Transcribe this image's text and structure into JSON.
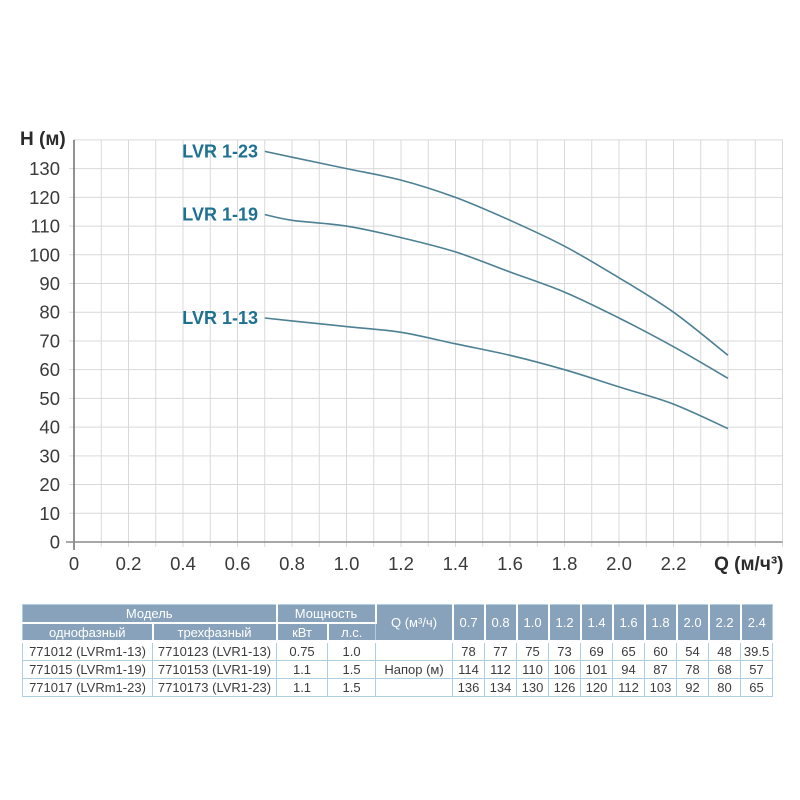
{
  "chart_data": {
    "type": "line",
    "title": "",
    "xlabel": "Q (м/ч³)",
    "ylabel": "H (м)",
    "xlim": [
      0,
      2.6
    ],
    "ylim": [
      0,
      140
    ],
    "grid": {
      "on": true,
      "x_step": 0.1,
      "y_step": 10
    },
    "legend_position": "inline-left-of-curves",
    "x_tick_labels": [
      "0",
      "0.2",
      "0.4",
      "0.6",
      "0.8",
      "1.0",
      "1.2",
      "1.4",
      "1.6",
      "1.8",
      "2.0",
      "2.2"
    ],
    "y_ticks": [
      0,
      10,
      20,
      30,
      40,
      50,
      60,
      70,
      80,
      90,
      100,
      110,
      120,
      130
    ],
    "x": [
      0.7,
      0.8,
      1.0,
      1.2,
      1.4,
      1.6,
      1.8,
      2.0,
      2.2,
      2.4
    ],
    "series": [
      {
        "name": "LVR 1-13",
        "values": [
          78,
          77,
          75,
          73,
          69,
          65,
          60,
          54,
          48,
          39.5
        ]
      },
      {
        "name": "LVR 1-19",
        "values": [
          114,
          112,
          110,
          106,
          101,
          94,
          87,
          78,
          68,
          57
        ]
      },
      {
        "name": "LVR 1-23",
        "values": [
          136,
          134,
          130,
          126,
          120,
          112,
          103,
          92,
          80,
          65
        ]
      }
    ],
    "colors": {
      "curve": "#4d8093",
      "curve_label": "#1e7190",
      "grid": "#d9d9d9",
      "axis": "#8c8c8c",
      "tick_text": "#3a3a3a",
      "axis_title_text": "#2b2b2b"
    }
  },
  "table": {
    "header": {
      "model": "Модель",
      "model_single_phase": "однофазный",
      "model_three_phase": "трехфазный",
      "power": "Мощность",
      "power_kw": "кВт",
      "power_hp": "л.с.",
      "q_label": "Q (м³/ч)",
      "q_values": [
        "0.7",
        "0.8",
        "1.0",
        "1.2",
        "1.4",
        "1.6",
        "1.8",
        "2.0",
        "2.2",
        "2.4"
      ]
    },
    "head_row_label": "Напор (м)",
    "rows": [
      {
        "single": "771012 (LVRm1-13)",
        "three": "7710123 (LVR1-13)",
        "kw": "0.75",
        "hp": "1.0",
        "head": [
          "78",
          "77",
          "75",
          "73",
          "69",
          "65",
          "60",
          "54",
          "48",
          "39.5"
        ]
      },
      {
        "single": "771015 (LVRm1-19)",
        "three": "7710153 (LVR1-19)",
        "kw": "1.1",
        "hp": "1.5",
        "head": [
          "114",
          "112",
          "110",
          "106",
          "101",
          "94",
          "87",
          "78",
          "68",
          "57"
        ]
      },
      {
        "single": "771017 (LVRm1-23)",
        "three": "7710173 (LVR1-23)",
        "kw": "1.1",
        "hp": "1.5",
        "head": [
          "136",
          "134",
          "130",
          "126",
          "120",
          "112",
          "103",
          "92",
          "80",
          "65"
        ]
      }
    ],
    "style": {
      "header_bg": "#87a2ba",
      "header_text": "#ffffff",
      "body_border": "#aecfe0",
      "body_text": "#3c3c3c"
    }
  }
}
